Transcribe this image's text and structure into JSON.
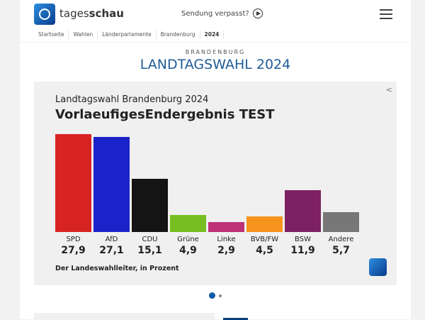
{
  "header": {
    "brand_light": "tages",
    "brand_bold": "schau",
    "missed": "Sendung verpasst?"
  },
  "breadcrumb": [
    "Startseite",
    "Wahlen",
    "Länderparlamente",
    "Brandenburg",
    "2024"
  ],
  "kicker": "BRANDENBURG",
  "title": "LANDTAGSWAHL 2024",
  "chart_data": {
    "type": "bar",
    "title": "Landtagswahl Brandenburg 2024",
    "subtitle": "VorlaeufigesEndergebnis TEST",
    "categories": [
      "SPD",
      "AfD",
      "CDU",
      "Grüne",
      "Linke",
      "BVB/FW",
      "BSW",
      "Andere"
    ],
    "values": [
      27.9,
      27.1,
      15.1,
      4.9,
      2.9,
      4.5,
      11.9,
      5.7
    ],
    "value_labels": [
      "27,9",
      "27,1",
      "15,1",
      "4,9",
      "2,9",
      "4,5",
      "11,9",
      "5,7"
    ],
    "colors": [
      "#d82323",
      "#1c22c9",
      "#141414",
      "#78be21",
      "#be3277",
      "#f7941d",
      "#7d2163",
      "#777777"
    ],
    "source": "Der Landeswahlleiter, in Prozent"
  },
  "carousel": {
    "active": 1,
    "count": 2
  }
}
